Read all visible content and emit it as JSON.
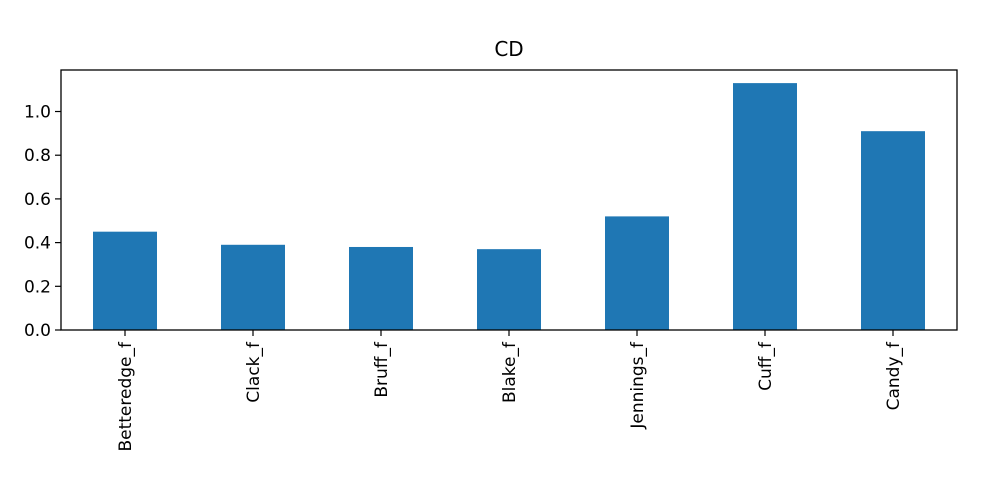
{
  "chart_data": {
    "type": "bar",
    "title": "CD",
    "xlabel": "",
    "ylabel": "",
    "categories": [
      "Betteredge_f",
      "Clack_f",
      "Bruff_f",
      "Blake_f",
      "Jennings_f",
      "Cuff_f",
      "Candy_f"
    ],
    "values": [
      0.45,
      0.39,
      0.38,
      0.37,
      0.52,
      1.13,
      0.91
    ],
    "ylim": [
      0,
      1.19
    ],
    "yticks": [
      0.0,
      0.2,
      0.4,
      0.6,
      0.8,
      1.0
    ],
    "ytick_labels": [
      "0.0",
      "0.2",
      "0.4",
      "0.6",
      "0.8",
      "1.0"
    ],
    "grid": false,
    "legend": "none",
    "bar_color": "#1f77b4"
  }
}
